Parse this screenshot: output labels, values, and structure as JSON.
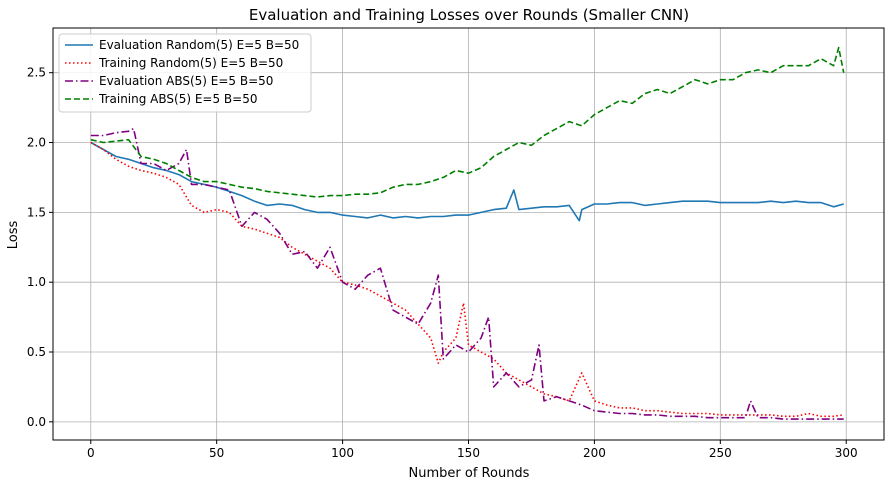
{
  "chart_data": {
    "type": "line",
    "title": "Evaluation and Training Losses over Rounds (Smaller CNN)",
    "xlabel": "Number of Rounds",
    "ylabel": "Loss",
    "xlim": [
      -15,
      315
    ],
    "ylim": [
      -0.13,
      2.82
    ],
    "xticks": [
      0,
      50,
      100,
      150,
      200,
      250,
      300
    ],
    "yticks": [
      0.0,
      0.5,
      1.0,
      1.5,
      2.0,
      2.5
    ],
    "grid": true,
    "legend": "upper-left",
    "series": [
      {
        "name": "Evaluation Random(5) E=5 B=50",
        "color": "#1f77b4",
        "style": "solid",
        "x": [
          0,
          5,
          10,
          15,
          20,
          25,
          30,
          35,
          40,
          45,
          50,
          55,
          60,
          65,
          70,
          75,
          80,
          85,
          90,
          95,
          100,
          105,
          110,
          115,
          120,
          125,
          130,
          135,
          140,
          145,
          150,
          155,
          160,
          165,
          168,
          170,
          175,
          180,
          185,
          190,
          194,
          195,
          200,
          205,
          210,
          215,
          220,
          225,
          230,
          235,
          240,
          245,
          250,
          255,
          260,
          265,
          270,
          275,
          280,
          285,
          290,
          295,
          299
        ],
        "y": [
          2.0,
          1.95,
          1.9,
          1.88,
          1.85,
          1.82,
          1.8,
          1.77,
          1.72,
          1.7,
          1.68,
          1.65,
          1.62,
          1.58,
          1.55,
          1.56,
          1.55,
          1.52,
          1.5,
          1.5,
          1.48,
          1.47,
          1.46,
          1.48,
          1.46,
          1.47,
          1.46,
          1.47,
          1.47,
          1.48,
          1.48,
          1.5,
          1.52,
          1.53,
          1.66,
          1.52,
          1.53,
          1.54,
          1.54,
          1.55,
          1.44,
          1.52,
          1.56,
          1.56,
          1.57,
          1.57,
          1.55,
          1.56,
          1.57,
          1.58,
          1.58,
          1.58,
          1.57,
          1.57,
          1.57,
          1.57,
          1.58,
          1.57,
          1.58,
          1.57,
          1.57,
          1.54,
          1.56
        ]
      },
      {
        "name": "Training Random(5) E=5 B=50",
        "color": "#ff0000",
        "style": "dotted",
        "x": [
          0,
          5,
          10,
          15,
          20,
          25,
          30,
          35,
          40,
          45,
          50,
          55,
          60,
          65,
          70,
          75,
          80,
          85,
          90,
          95,
          100,
          105,
          110,
          115,
          120,
          125,
          130,
          135,
          138,
          140,
          145,
          148,
          150,
          155,
          160,
          165,
          170,
          175,
          180,
          185,
          190,
          195,
          200,
          205,
          210,
          215,
          220,
          225,
          230,
          235,
          240,
          245,
          250,
          255,
          260,
          265,
          270,
          275,
          280,
          285,
          290,
          295,
          299
        ],
        "y": [
          2.0,
          1.95,
          1.88,
          1.83,
          1.8,
          1.78,
          1.75,
          1.7,
          1.55,
          1.5,
          1.52,
          1.5,
          1.4,
          1.38,
          1.35,
          1.32,
          1.25,
          1.2,
          1.15,
          1.1,
          1.0,
          0.98,
          0.95,
          0.9,
          0.85,
          0.8,
          0.7,
          0.6,
          0.42,
          0.5,
          0.6,
          0.85,
          0.55,
          0.5,
          0.45,
          0.35,
          0.3,
          0.25,
          0.2,
          0.18,
          0.15,
          0.35,
          0.15,
          0.12,
          0.1,
          0.1,
          0.08,
          0.08,
          0.07,
          0.06,
          0.06,
          0.06,
          0.05,
          0.05,
          0.05,
          0.05,
          0.05,
          0.04,
          0.04,
          0.06,
          0.04,
          0.04,
          0.05
        ]
      },
      {
        "name": "Evaluation ABS(5) E=5 B=50",
        "color": "#800080",
        "style": "dashdot",
        "x": [
          0,
          5,
          10,
          15,
          17,
          20,
          25,
          30,
          35,
          38,
          40,
          45,
          50,
          55,
          60,
          65,
          70,
          75,
          80,
          85,
          90,
          95,
          100,
          105,
          110,
          115,
          120,
          125,
          130,
          135,
          138,
          140,
          145,
          150,
          155,
          158,
          160,
          165,
          170,
          175,
          178,
          180,
          185,
          190,
          195,
          200,
          205,
          210,
          215,
          220,
          225,
          230,
          235,
          240,
          245,
          250,
          255,
          260,
          262,
          265,
          270,
          275,
          280,
          285,
          290,
          295,
          299
        ],
        "y": [
          2.05,
          2.05,
          2.07,
          2.08,
          2.1,
          1.85,
          1.85,
          1.8,
          1.85,
          1.95,
          1.7,
          1.7,
          1.68,
          1.66,
          1.4,
          1.5,
          1.45,
          1.35,
          1.2,
          1.22,
          1.1,
          1.25,
          1.0,
          0.95,
          1.05,
          1.1,
          0.8,
          0.75,
          0.7,
          0.85,
          1.05,
          0.45,
          0.55,
          0.5,
          0.6,
          0.75,
          0.25,
          0.35,
          0.25,
          0.3,
          0.55,
          0.15,
          0.18,
          0.15,
          0.12,
          0.08,
          0.07,
          0.06,
          0.06,
          0.05,
          0.05,
          0.04,
          0.04,
          0.04,
          0.03,
          0.03,
          0.03,
          0.03,
          0.15,
          0.03,
          0.03,
          0.02,
          0.02,
          0.02,
          0.02,
          0.02,
          0.02
        ]
      },
      {
        "name": "Training ABS(5) E=5 B=50",
        "color": "#008000",
        "style": "dashed",
        "x": [
          0,
          5,
          10,
          15,
          20,
          25,
          30,
          35,
          40,
          45,
          50,
          55,
          60,
          65,
          70,
          75,
          80,
          85,
          90,
          95,
          100,
          105,
          110,
          115,
          120,
          125,
          130,
          135,
          140,
          145,
          150,
          155,
          160,
          165,
          170,
          175,
          180,
          185,
          190,
          195,
          200,
          205,
          210,
          215,
          220,
          225,
          230,
          235,
          240,
          245,
          250,
          255,
          260,
          265,
          270,
          275,
          280,
          285,
          290,
          295,
          297,
          299
        ],
        "y": [
          2.02,
          2.0,
          2.01,
          2.02,
          1.9,
          1.88,
          1.85,
          1.8,
          1.75,
          1.72,
          1.72,
          1.7,
          1.68,
          1.67,
          1.65,
          1.64,
          1.63,
          1.62,
          1.61,
          1.62,
          1.62,
          1.63,
          1.63,
          1.64,
          1.68,
          1.7,
          1.7,
          1.72,
          1.75,
          1.8,
          1.78,
          1.82,
          1.9,
          1.95,
          2.0,
          1.98,
          2.05,
          2.1,
          2.15,
          2.12,
          2.2,
          2.25,
          2.3,
          2.28,
          2.35,
          2.38,
          2.35,
          2.4,
          2.45,
          2.42,
          2.45,
          2.45,
          2.5,
          2.52,
          2.5,
          2.55,
          2.55,
          2.55,
          2.6,
          2.55,
          2.68,
          2.5
        ]
      }
    ]
  }
}
